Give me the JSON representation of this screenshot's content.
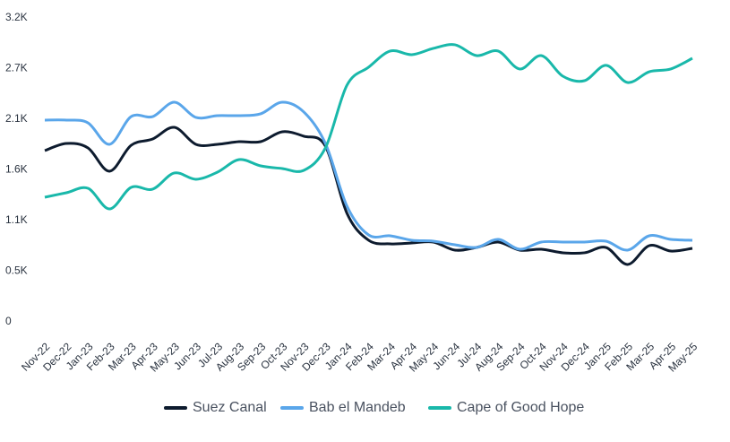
{
  "chart_data": {
    "type": "line",
    "categories": [
      "Nov-22",
      "Dec-22",
      "Jan-23",
      "Feb-23",
      "Mar-23",
      "Apr-23",
      "May-23",
      "Jun-23",
      "Jul-23",
      "Aug-23",
      "Sep-23",
      "Oct-23",
      "Nov-23",
      "Dec-23",
      "Jan-24",
      "Feb-24",
      "Mar-24",
      "Apr-24",
      "May-24",
      "Jun-24",
      "Jul-24",
      "Aug-24",
      "Sep-24",
      "Oct-24",
      "Nov-24",
      "Dec-24",
      "Jan-25",
      "Feb-25",
      "Mar-25",
      "Apr-25",
      "May-25"
    ],
    "series": [
      {
        "name": "Suez Canal",
        "color": "#0d1b2e",
        "values": [
          1860,
          1935,
          1888,
          1643,
          1916,
          1982,
          2105,
          1926,
          1926,
          1954,
          1954,
          2058,
          2011,
          1907,
          1199,
          916,
          878,
          887,
          897,
          812,
          840,
          897,
          812,
          821,
          784,
          784,
          840,
          661,
          859,
          802,
          831
        ]
      },
      {
        "name": "Bab el Mandeb",
        "color": "#5aa6ea",
        "values": [
          2181,
          2181,
          2152,
          1926,
          2218,
          2218,
          2369,
          2209,
          2228,
          2228,
          2247,
          2369,
          2266,
          1935,
          1274,
          972,
          963,
          916,
          906,
          868,
          840,
          925,
          821,
          897,
          897,
          897,
          906,
          812,
          963,
          925,
          916
        ]
      },
      {
        "name": "Cape of Good Hope",
        "color": "#19b8aa",
        "values": [
          1369,
          1416,
          1463,
          1246,
          1473,
          1454,
          1624,
          1558,
          1633,
          1765,
          1699,
          1671,
          1652,
          1888,
          2549,
          2738,
          2908,
          2870,
          2936,
          2974,
          2860,
          2908,
          2719,
          2860,
          2643,
          2596,
          2757,
          2577,
          2690,
          2719,
          2832
        ]
      }
    ],
    "ylim": [
      0,
      3200
    ],
    "yticks": [
      0,
      {
        "value": 533,
        "label": "0.5K"
      },
      {
        "value": 1067,
        "label": "1.1K"
      },
      {
        "value": 1600,
        "label": "1.6K"
      },
      {
        "value": 2133,
        "label": "2.1K"
      },
      {
        "value": 2667,
        "label": "2.7K"
      },
      {
        "value": 3200,
        "label": "3.2K"
      }
    ],
    "grid": false,
    "legend": "bottom"
  }
}
